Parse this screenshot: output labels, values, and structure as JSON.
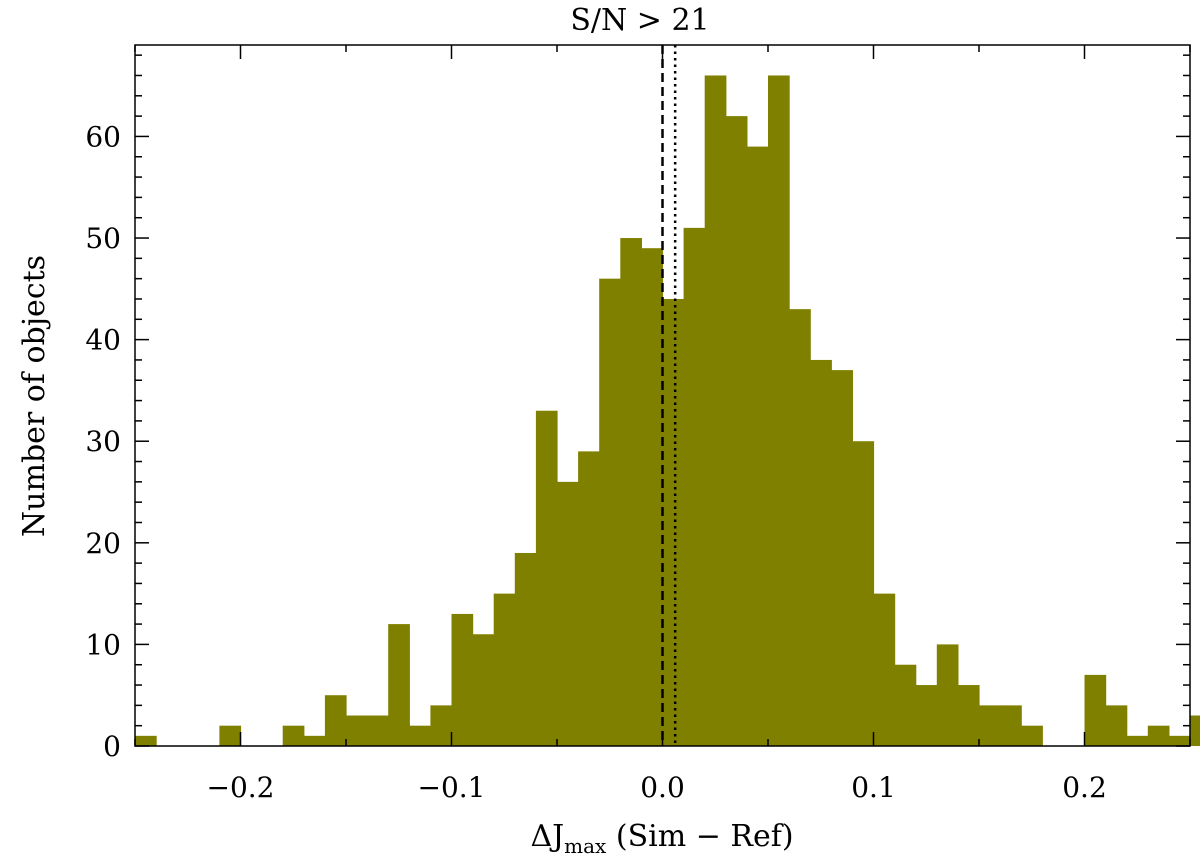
{
  "chart_data": {
    "type": "bar",
    "title": "S/N  > 21",
    "xlabel_prefix": "ΔJ",
    "xlabel_sub": "max",
    "xlabel_suffix": " (Sim − Ref)",
    "ylabel": "Number of objects",
    "xlim": [
      -0.25,
      0.25
    ],
    "ylim": [
      0,
      69
    ],
    "bin_width": 0.01,
    "bin_start": -0.25,
    "counts": [
      1,
      0,
      0,
      0,
      2,
      0,
      0,
      2,
      1,
      5,
      3,
      3,
      12,
      2,
      4,
      13,
      11,
      15,
      19,
      33,
      26,
      29,
      46,
      50,
      49,
      44,
      51,
      66,
      62,
      59,
      66,
      43,
      38,
      37,
      30,
      15,
      8,
      6,
      10,
      6,
      4,
      4,
      2,
      0,
      0,
      7,
      4,
      1,
      2,
      1,
      3
    ],
    "bar_color": "#808000",
    "x_ticks": [
      -0.2,
      -0.1,
      0.0,
      0.1,
      0.2
    ],
    "x_tick_labels": [
      "−0.2",
      "−0.1",
      "0.0",
      "0.1",
      "0.2"
    ],
    "y_ticks": [
      0,
      10,
      20,
      30,
      40,
      50,
      60
    ],
    "y_tick_labels": [
      "0",
      "10",
      "20",
      "30",
      "40",
      "50",
      "60"
    ],
    "vlines": [
      {
        "x": 0.0,
        "style": "dashed"
      },
      {
        "x": 0.006,
        "style": "dotted"
      }
    ],
    "grid": false
  }
}
